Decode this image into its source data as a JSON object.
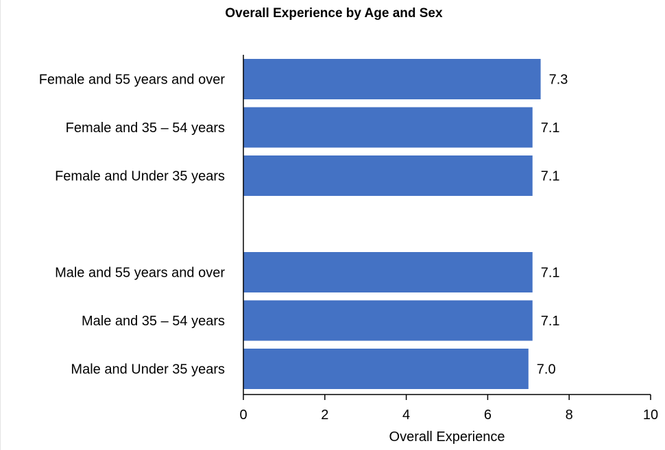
{
  "chart_data": {
    "type": "bar",
    "orientation": "horizontal",
    "title": "Overall Experience by Age and Sex",
    "xlabel": "Overall Experience",
    "ylabel": "",
    "xlim": [
      0,
      10
    ],
    "xticks": [
      "0",
      "2",
      "4",
      "6",
      "8",
      "10"
    ],
    "grid": false,
    "legend": "none",
    "bar_color": "#4472C4",
    "groups": [
      {
        "categories": [
          "Female and 55 years and over",
          "Female and 35 – 54 years",
          "Female and Under 35 years"
        ],
        "values": [
          7.3,
          7.1,
          7.1
        ],
        "value_labels": [
          "7.3",
          "7.1",
          "7.1"
        ]
      },
      {
        "categories": [
          "Male and 55 years and over",
          "Male and 35 – 54 years",
          "Male and Under 35 years"
        ],
        "values": [
          7.1,
          7.1,
          7.0
        ],
        "value_labels": [
          "7.1",
          "7.1",
          "7.0"
        ]
      }
    ]
  }
}
